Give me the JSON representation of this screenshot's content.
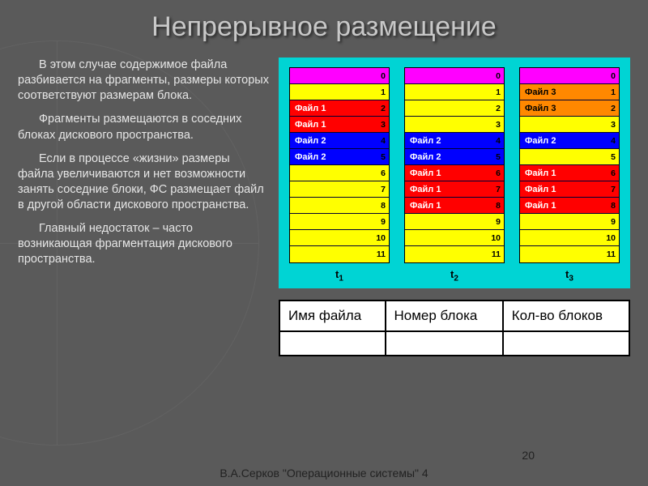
{
  "title": "Непрерывное размещение",
  "paragraphs": [
    "В этом случае содержимое файла разбивается на фрагменты, размеры которых соответствуют размерам блока.",
    "Фрагменты размещаются в соседних блоках дискового пространства.",
    "Если в процессе «жизни» размеры файла увеличиваются и нет возможности занять соседние блоки, ФС размещает файл в другой области дискового пространства.",
    "Главный недостаток – часто возникающая фрагментация дискового пространства."
  ],
  "diagram": {
    "background": "#00d4d4",
    "colors": {
      "free": "#ffff00",
      "header": "#ff00ff",
      "file1": "#ff0000",
      "file2": "#0000ff",
      "file3": "#ff8800",
      "text_light": "#ffffff",
      "text_dark": "#000000"
    },
    "row_indices": [
      0,
      1,
      2,
      3,
      4,
      5,
      6,
      7,
      8,
      9,
      10,
      11
    ],
    "columns": [
      {
        "label_base": "t",
        "label_sub": "1",
        "rows": [
          {
            "label": "",
            "type": "header"
          },
          {
            "label": "",
            "type": "free"
          },
          {
            "label": "Файл 1",
            "type": "file1"
          },
          {
            "label": "Файл 1",
            "type": "file1"
          },
          {
            "label": "Файл 2",
            "type": "file2"
          },
          {
            "label": "Файл 2",
            "type": "file2"
          },
          {
            "label": "",
            "type": "free"
          },
          {
            "label": "",
            "type": "free"
          },
          {
            "label": "",
            "type": "free"
          },
          {
            "label": "",
            "type": "free"
          },
          {
            "label": "",
            "type": "free"
          },
          {
            "label": "",
            "type": "free"
          }
        ]
      },
      {
        "label_base": "t",
        "label_sub": "2",
        "rows": [
          {
            "label": "",
            "type": "header"
          },
          {
            "label": "",
            "type": "free"
          },
          {
            "label": "",
            "type": "free"
          },
          {
            "label": "",
            "type": "free"
          },
          {
            "label": "Файл 2",
            "type": "file2"
          },
          {
            "label": "Файл 2",
            "type": "file2"
          },
          {
            "label": "Файл 1",
            "type": "file1"
          },
          {
            "label": "Файл 1",
            "type": "file1"
          },
          {
            "label": "Файл 1",
            "type": "file1"
          },
          {
            "label": "",
            "type": "free"
          },
          {
            "label": "",
            "type": "free"
          },
          {
            "label": "",
            "type": "free"
          }
        ]
      },
      {
        "label_base": "t",
        "label_sub": "3",
        "rows": [
          {
            "label": "",
            "type": "header"
          },
          {
            "label": "Файл 3",
            "type": "file3"
          },
          {
            "label": "Файл 3",
            "type": "file3"
          },
          {
            "label": "",
            "type": "free"
          },
          {
            "label": "Файл 2",
            "type": "file2"
          },
          {
            "label": "",
            "type": "free"
          },
          {
            "label": "Файл 1",
            "type": "file1"
          },
          {
            "label": "Файл 1",
            "type": "file1"
          },
          {
            "label": "Файл 1",
            "type": "file1"
          },
          {
            "label": "",
            "type": "free"
          },
          {
            "label": "",
            "type": "free"
          },
          {
            "label": "",
            "type": "free"
          }
        ]
      }
    ]
  },
  "table": {
    "headers": [
      "Имя файла",
      "Номер блока",
      "Кол-во блоков"
    ]
  },
  "footer": "В.А.Серков \"Операционные системы\" 4",
  "page_number": "20"
}
